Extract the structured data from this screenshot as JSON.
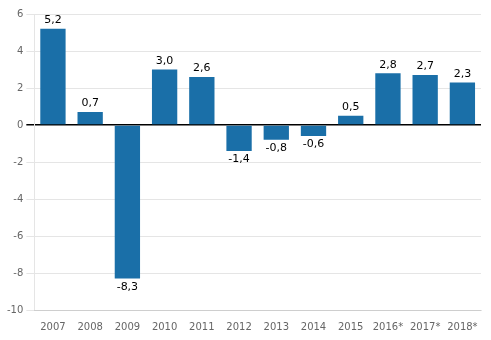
{
  "chart_data": {
    "type": "bar",
    "categories": [
      "2007",
      "2008",
      "2009",
      "2010",
      "2011",
      "2012",
      "2013",
      "2014",
      "2015",
      "2016*",
      "2017*",
      "2018*"
    ],
    "values": [
      5.2,
      0.7,
      -8.3,
      3.0,
      2.6,
      -1.4,
      -0.8,
      -0.6,
      0.5,
      2.8,
      2.7,
      2.3
    ],
    "value_labels": [
      "5,2",
      "0,7",
      "-8,3",
      "3,0",
      "2,6",
      "-1,4",
      "-0,8",
      "-0,6",
      "0,5",
      "2,8",
      "2,7",
      "2,3"
    ],
    "color": "#1a6fa8",
    "ylim": [
      -10,
      6
    ],
    "yticks": [
      -10,
      -8,
      -6,
      -4,
      -2,
      0,
      2,
      4,
      6
    ],
    "grid": true,
    "data_labels": true
  }
}
